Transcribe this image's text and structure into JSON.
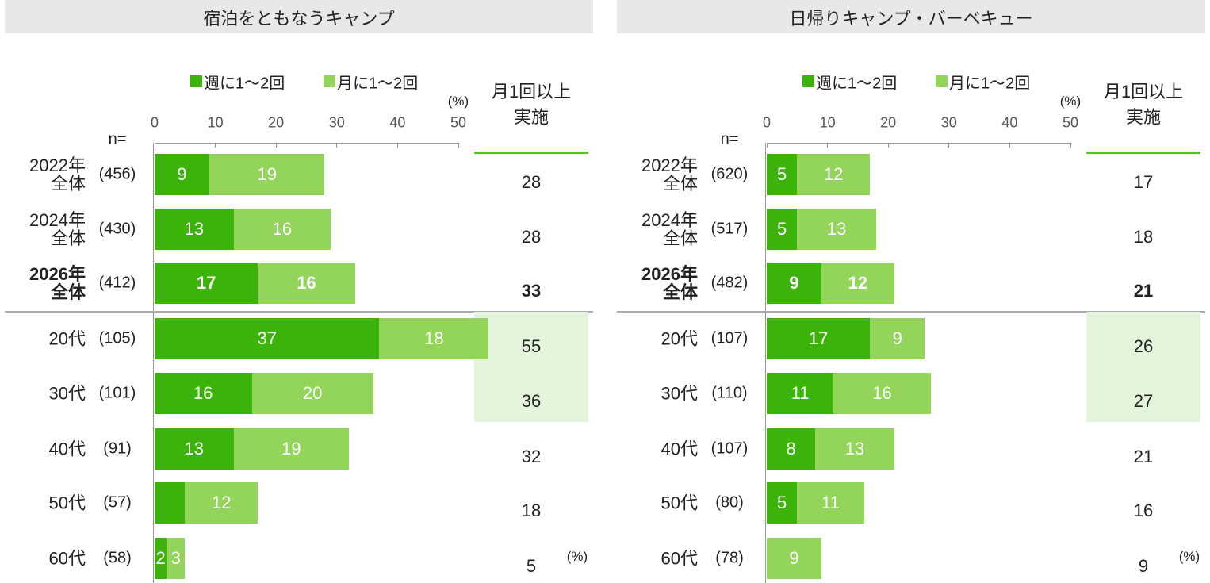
{
  "chart_data": [
    {
      "type": "bar",
      "orientation": "horizontal",
      "stacked": true,
      "title": "宿泊をともなうキャンプ",
      "categories": [
        "2022年全体",
        "2024年全体",
        "2026年全体",
        "20代",
        "30代",
        "40代",
        "50代",
        "60代"
      ],
      "n_label": "n=",
      "n_values": [
        "(456)",
        "(430)",
        "(412)",
        "(105)",
        "(101)",
        "(91)",
        "(57)",
        "(58)"
      ],
      "series": [
        {
          "name": "週に1～2回",
          "color": "#3cb30a",
          "values": [
            9,
            13,
            17,
            37,
            16,
            13,
            5,
            2
          ],
          "value_labels": [
            "9",
            "13",
            "17",
            "37",
            "16",
            "13",
            null,
            "2"
          ]
        },
        {
          "name": "月に1～2回",
          "color": "#92d55a",
          "values": [
            19,
            16,
            16,
            18,
            20,
            19,
            12,
            3
          ],
          "value_labels": [
            "19",
            "16",
            "16",
            "18",
            "20",
            "19",
            "12",
            "3"
          ]
        }
      ],
      "xlim": [
        0,
        50
      ],
      "xticks": [
        0,
        10,
        20,
        30,
        40,
        50
      ],
      "xlabel": "(%)",
      "totals_title": "月1回以上実施",
      "totals": [
        28,
        28,
        33,
        55,
        36,
        32,
        18,
        5
      ],
      "totals_unit": "(%)",
      "bold_category": "2026年全体",
      "separator_after": "2026年全体",
      "shaded_totals": [
        "20代",
        "30代"
      ]
    },
    {
      "type": "bar",
      "orientation": "horizontal",
      "stacked": true,
      "title": "日帰りキャンプ・バーベキュー",
      "categories": [
        "2022年全体",
        "2024年全体",
        "2026年全体",
        "20代",
        "30代",
        "40代",
        "50代",
        "60代"
      ],
      "n_label": "n=",
      "n_values": [
        "(620)",
        "(517)",
        "(482)",
        "(107)",
        "(110)",
        "(107)",
        "(80)",
        "(78)"
      ],
      "series": [
        {
          "name": "週に1～2回",
          "color": "#3cb30a",
          "values": [
            5,
            5,
            9,
            17,
            11,
            8,
            5,
            0
          ],
          "value_labels": [
            "5",
            "5",
            "9",
            "17",
            "11",
            "8",
            "5",
            null
          ]
        },
        {
          "name": "月に1～2回",
          "color": "#92d55a",
          "values": [
            12,
            13,
            12,
            9,
            16,
            13,
            11,
            9
          ],
          "value_labels": [
            "12",
            "13",
            "12",
            "9",
            "16",
            "13",
            "11",
            "9"
          ]
        }
      ],
      "xlim": [
        0,
        50
      ],
      "xticks": [
        0,
        10,
        20,
        30,
        40,
        50
      ],
      "xlabel": "(%)",
      "totals_title": "月1回以上実施",
      "totals": [
        17,
        18,
        21,
        26,
        27,
        21,
        16,
        9
      ],
      "totals_unit": "(%)",
      "bold_category": "2026年全体",
      "separator_after": "2026年全体",
      "shaded_totals": [
        "20代",
        "30代"
      ]
    }
  ]
}
